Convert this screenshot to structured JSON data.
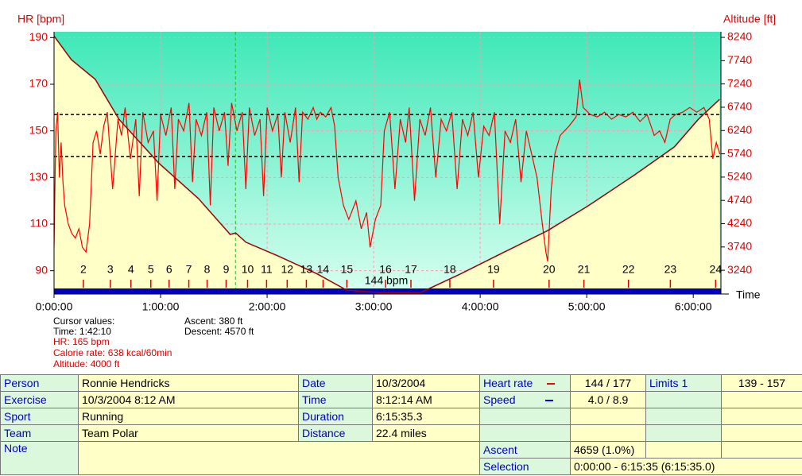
{
  "chart_data": {
    "type": "line",
    "y_label": "HR [bpm]",
    "y2_label": "Altitude [ft]",
    "x_label": "Time",
    "xlim": [
      0,
      375.58
    ],
    "xticks": [
      {
        "value": 0,
        "label": "0:00:00"
      },
      {
        "value": 60,
        "label": "1:00:00"
      },
      {
        "value": 120,
        "label": "2:00:00"
      },
      {
        "value": 180,
        "label": "3:00:00"
      },
      {
        "value": 240,
        "label": "4:00:00"
      },
      {
        "value": 300,
        "label": "5:00:00"
      },
      {
        "value": 360,
        "label": "6:00:00"
      }
    ],
    "ylim": [
      80,
      192.5
    ],
    "yticks": [
      90,
      110,
      130,
      150,
      170,
      190
    ],
    "y2lim": [
      2730,
      8360
    ],
    "y2ticks": [
      3240,
      3740,
      4240,
      4740,
      5240,
      5740,
      6240,
      6740,
      7240,
      7740,
      8240
    ],
    "grid": true,
    "limits": [
      139,
      157
    ],
    "cursor_time": 102.17,
    "annotation": "144 bpm",
    "series": [
      {
        "color": "#ff0000",
        "x": [
          0,
          1,
          2,
          3,
          4,
          5,
          6,
          8,
          10,
          12,
          14,
          16,
          18,
          20,
          22,
          24,
          26,
          28,
          30,
          33,
          36,
          38,
          40,
          43,
          46,
          48,
          50,
          53,
          56,
          58,
          60,
          63,
          66,
          68,
          70,
          73,
          76,
          78,
          80,
          83,
          86,
          88,
          90,
          93,
          96,
          98,
          100,
          103,
          106,
          108,
          110,
          113,
          116,
          118,
          120,
          123,
          126,
          128,
          130,
          133,
          136,
          138,
          140,
          143,
          146,
          148,
          150,
          153,
          156,
          158,
          160,
          163,
          166,
          170,
          173,
          176,
          178,
          181,
          184,
          186,
          189,
          192,
          195,
          198,
          200,
          203,
          206,
          209,
          212,
          215,
          218,
          221,
          224,
          227,
          230,
          233,
          236,
          239,
          242,
          245,
          248,
          251,
          254,
          257,
          260,
          263,
          266,
          269,
          272,
          275,
          277,
          278,
          280,
          282,
          285,
          290,
          294,
          296,
          298,
          302,
          306,
          310,
          314,
          318,
          322,
          326,
          330,
          334,
          338,
          341,
          344,
          347,
          350,
          354,
          358,
          362,
          366,
          369,
          371,
          373,
          375
        ],
        "values": [
          100,
          150,
          158,
          130,
          145,
          128,
          118,
          110,
          106,
          104,
          108,
          100,
          98,
          110,
          145,
          150,
          140,
          152,
          158,
          125,
          155,
          148,
          160,
          138,
          155,
          122,
          158,
          145,
          150,
          120,
          157,
          148,
          160,
          125,
          155,
          150,
          162,
          128,
          155,
          148,
          158,
          118,
          160,
          150,
          158,
          135,
          162,
          150,
          158,
          125,
          160,
          148,
          155,
          122,
          160,
          150,
          157,
          130,
          158,
          145,
          160,
          128,
          158,
          155,
          160,
          155,
          158,
          156,
          160,
          152,
          130,
          118,
          112,
          120,
          108,
          115,
          100,
          112,
          118,
          150,
          158,
          125,
          155,
          145,
          160,
          120,
          155,
          148,
          160,
          130,
          155,
          150,
          158,
          125,
          155,
          148,
          158,
          130,
          152,
          148,
          158,
          110,
          150,
          145,
          155,
          128,
          150,
          140,
          130,
          110,
          98,
          94,
          125,
          140,
          148,
          152,
          156,
          172,
          160,
          157,
          156,
          158,
          155,
          157,
          156,
          158,
          154,
          157,
          148,
          150,
          145,
          155,
          157,
          158,
          160,
          158,
          160,
          155,
          138,
          145,
          140
        ]
      },
      {
        "color": "#a00000",
        "fill": "#ffffc8",
        "axis": "y2",
        "x": [
          0,
          9.8,
          23.2,
          36.6,
          59,
          81.3,
          99.2,
          102.3,
          108.1,
          126,
          148.3,
          164.9,
          184.1,
          206.4,
          228.8,
          255.6,
          277.9,
          300.3,
          327.1,
          349.4,
          362.8,
          374.8
        ],
        "values": [
          8270,
          7760,
          7340,
          6480,
          5540,
          4780,
          4010,
          4040,
          3840,
          3550,
          3160,
          2810,
          2760,
          2760,
          3160,
          3670,
          4090,
          4610,
          5290,
          5890,
          6480,
          6910
        ]
      }
    ],
    "laps": {
      "labels": [
        "2",
        "3",
        "4",
        "5",
        "6",
        "7",
        "8",
        "9",
        "10",
        "11",
        "12",
        "13",
        "14",
        "15",
        "16",
        "17",
        "18",
        "19",
        "20",
        "21",
        "22",
        "23",
        "24"
      ],
      "x": [
        16.5,
        31.7,
        43.3,
        54.5,
        64.8,
        75.9,
        86.2,
        96.9,
        109,
        119.7,
        131.3,
        142.1,
        151.5,
        164.9,
        186.7,
        201,
        222.9,
        247.5,
        278.8,
        298.4,
        323.5,
        347.1,
        372.6
      ]
    }
  },
  "cursor": {
    "title": "Cursor values:",
    "time": "Time: 1:42:10",
    "hr": "HR: 165 bpm",
    "calorie": "Calorie rate: 638 kcal/60min",
    "altitude": "Altitude: 4000 ft",
    "ascent": "Ascent: 380 ft",
    "descent": "Descent: 4570 ft"
  },
  "table": {
    "rows": [
      [
        "Person",
        "Ronnie Hendricks",
        "Date",
        "10/3/2004",
        "Heart rate",
        "144 / 177",
        "Limits 1",
        "139 - 157"
      ],
      [
        "Exercise",
        "10/3/2004 8:12 AM",
        "Time",
        "8:12:14 AM",
        "Speed",
        "4.0 / 8.9"
      ],
      [
        "Sport",
        "Running",
        "Duration",
        "6:15:35.3"
      ],
      [
        "Team",
        "Team Polar",
        "Distance",
        "22.4 miles"
      ],
      [
        "Note",
        "Ascent",
        "4659 (1.0%)"
      ],
      [
        "Selection",
        "0:00:00 - 6:15:35 (6:15:35.0)"
      ]
    ]
  }
}
